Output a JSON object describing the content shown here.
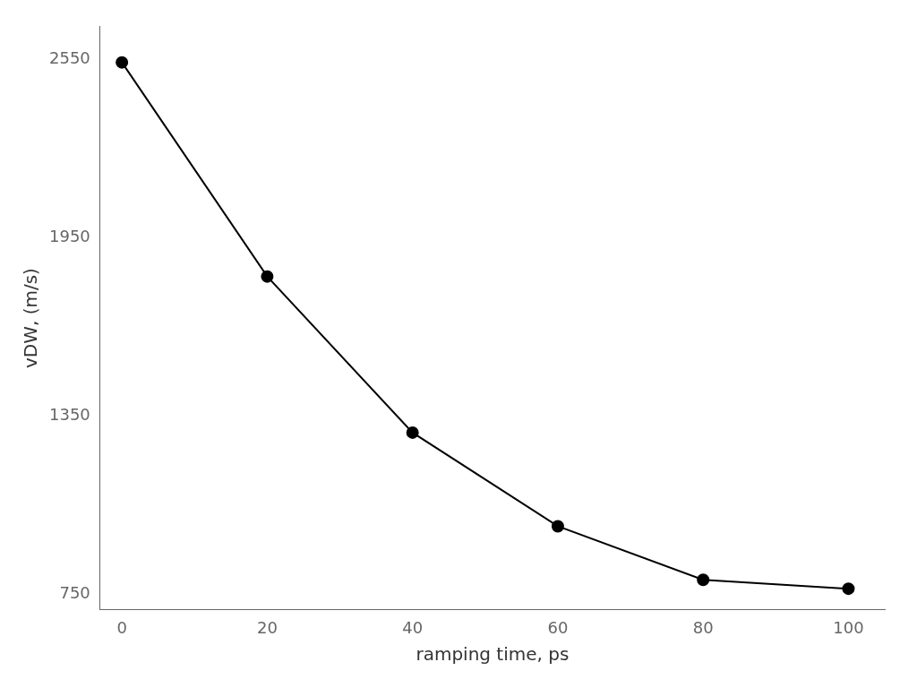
{
  "chart_data": {
    "type": "line",
    "x": [
      0,
      20,
      40,
      60,
      80,
      100
    ],
    "values": [
      2540,
      1820,
      1295,
      980,
      800,
      770
    ],
    "color": "#000000",
    "marker": "circle",
    "line_style": "solid",
    "xlabel": "ramping time, ps",
    "ylabel": "vDW, (m/s)",
    "xlim": [
      -3,
      105
    ],
    "ylim": [
      700,
      2660
    ],
    "xticks": [
      0,
      20,
      40,
      60,
      80,
      100
    ],
    "yticks": [
      750,
      1350,
      1950,
      2550
    ],
    "grid": false
  }
}
